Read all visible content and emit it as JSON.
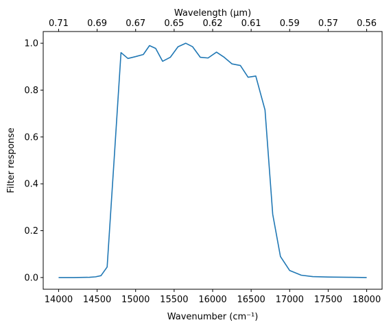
{
  "chart_data": {
    "type": "line",
    "xlabel": "Wavenumber (cm⁻¹)",
    "ylabel": "Filter response",
    "top_xlabel": "Wavelength (μm)",
    "xlim": [
      13800,
      18200
    ],
    "ylim": [
      -0.05,
      1.05
    ],
    "x_ticks": [
      14000,
      14500,
      15000,
      15500,
      16000,
      16500,
      17000,
      17500,
      18000
    ],
    "y_ticks": [
      0.0,
      0.2,
      0.4,
      0.6,
      0.8,
      1.0
    ],
    "y_tick_labels": [
      "0.0",
      "0.2",
      "0.4",
      "0.6",
      "0.8",
      "1.0"
    ],
    "top_ticks": [
      {
        "wavenumber": 14000,
        "label": "0.71"
      },
      {
        "wavenumber": 14500,
        "label": "0.69"
      },
      {
        "wavenumber": 15000,
        "label": "0.67"
      },
      {
        "wavenumber": 15500,
        "label": "0.65"
      },
      {
        "wavenumber": 16000,
        "label": "0.62"
      },
      {
        "wavenumber": 16500,
        "label": "0.61"
      },
      {
        "wavenumber": 17000,
        "label": "0.59"
      },
      {
        "wavenumber": 17500,
        "label": "0.57"
      },
      {
        "wavenumber": 18000,
        "label": "0.56"
      }
    ],
    "series": [
      {
        "color": "#1f77b4",
        "x": [
          14000,
          14200,
          14400,
          14480,
          14550,
          14630,
          14720,
          14810,
          14900,
          15000,
          15100,
          15180,
          15260,
          15350,
          15450,
          15550,
          15650,
          15740,
          15840,
          15940,
          16050,
          16150,
          16250,
          16360,
          16460,
          16560,
          16680,
          16780,
          16880,
          17000,
          17150,
          17300,
          17500,
          17800,
          18000
        ],
        "y": [
          0.0,
          0.0,
          0.001,
          0.003,
          0.008,
          0.045,
          0.5,
          0.96,
          0.935,
          0.943,
          0.952,
          0.99,
          0.978,
          0.923,
          0.94,
          0.985,
          1.0,
          0.985,
          0.94,
          0.937,
          0.962,
          0.94,
          0.912,
          0.905,
          0.855,
          0.86,
          0.715,
          0.27,
          0.09,
          0.03,
          0.01,
          0.004,
          0.002,
          0.001,
          0.0
        ]
      }
    ]
  }
}
